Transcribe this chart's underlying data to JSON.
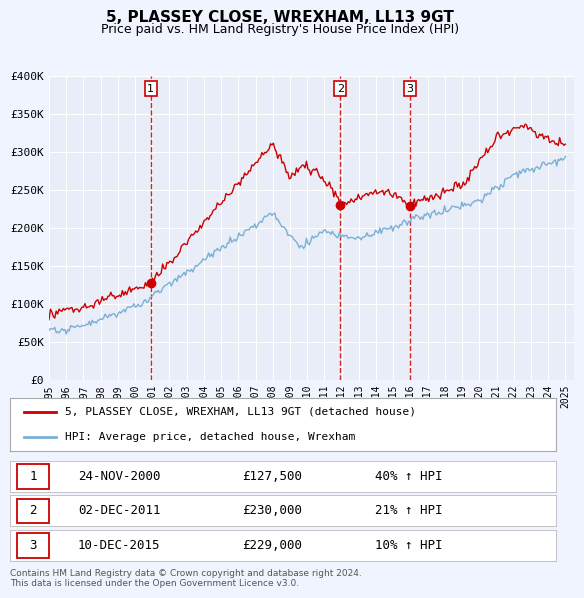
{
  "title": "5, PLASSEY CLOSE, WREXHAM, LL13 9GT",
  "subtitle": "Price paid vs. HM Land Registry's House Price Index (HPI)",
  "title_fontsize": 11,
  "subtitle_fontsize": 9,
  "bg_color": "#f0f4ff",
  "plot_bg_color": "#e8edf8",
  "grid_color": "#ffffff",
  "red_line_color": "#cc0000",
  "blue_line_color": "#7ab0d4",
  "vline_color": "#cc0000",
  "ylim": [
    0,
    400000
  ],
  "yticks": [
    0,
    50000,
    100000,
    150000,
    200000,
    250000,
    300000,
    350000,
    400000
  ],
  "ytick_labels": [
    "£0",
    "£50K",
    "£100K",
    "£150K",
    "£200K",
    "£250K",
    "£300K",
    "£350K",
    "£400K"
  ],
  "xmin": 1995.0,
  "xmax": 2025.5,
  "sale_dates": [
    2000.9,
    2011.92,
    2015.95
  ],
  "sale_prices": [
    127500,
    230000,
    229000
  ],
  "sale_labels": [
    "1",
    "2",
    "3"
  ],
  "legend_line1": "5, PLASSEY CLOSE, WREXHAM, LL13 9GT (detached house)",
  "legend_line2": "HPI: Average price, detached house, Wrexham",
  "table_rows": [
    {
      "num": "1",
      "date": "24-NOV-2000",
      "price": "£127,500",
      "hpi": "40% ↑ HPI"
    },
    {
      "num": "2",
      "date": "02-DEC-2011",
      "price": "£230,000",
      "hpi": "21% ↑ HPI"
    },
    {
      "num": "3",
      "date": "10-DEC-2015",
      "price": "£229,000",
      "hpi": "10% ↑ HPI"
    }
  ],
  "footer": "Contains HM Land Registry data © Crown copyright and database right 2024.\nThis data is licensed under the Open Government Licence v3.0."
}
